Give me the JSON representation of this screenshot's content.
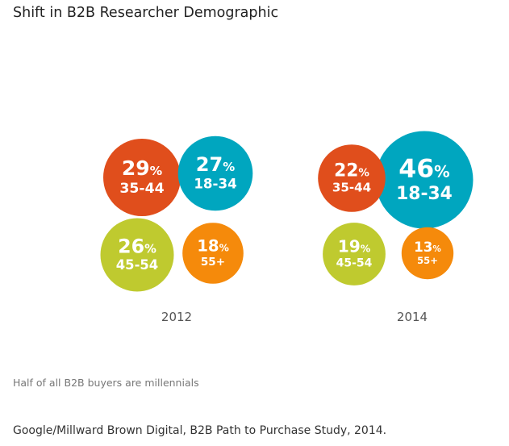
{
  "title": "Shift in B2B Researcher Demographic",
  "subtitle": "Half of all B2B buyers are millennials",
  "source": "Google/Millward Brown Digital, B2B Path to Purchase Study, 2014.",
  "chart_data": {
    "type": "bubble",
    "title": "Shift in B2B Researcher Demographic",
    "unit": "%",
    "colors": {
      "18-34": "#00a6bf",
      "35-44": "#e04e1c",
      "45-54": "#bfca2f",
      "55+": "#f58a0b"
    },
    "groups": [
      {
        "label": "2012",
        "bubbles": [
          {
            "age": "35-44",
            "value": 29
          },
          {
            "age": "18-34",
            "value": 27
          },
          {
            "age": "45-54",
            "value": 26
          },
          {
            "age": "55+",
            "value": 18
          }
        ]
      },
      {
        "label": "2014",
        "bubbles": [
          {
            "age": "18-34",
            "value": 46
          },
          {
            "age": "35-44",
            "value": 22
          },
          {
            "age": "45-54",
            "value": 19
          },
          {
            "age": "55+",
            "value": 13
          }
        ]
      }
    ]
  }
}
